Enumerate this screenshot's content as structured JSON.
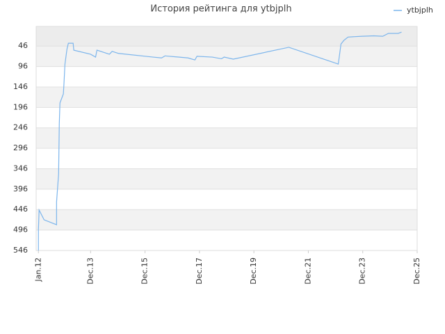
{
  "chart_data": {
    "type": "line",
    "title": "История рейтинга для ytbjplh",
    "x": [
      0,
      0,
      0.3,
      2.5,
      8,
      8,
      8.9,
      9.2,
      9.5,
      11,
      11.3,
      11.7,
      12.6,
      13.2,
      15.3,
      15.6,
      23,
      25.2,
      25.8,
      31.3,
      32.5,
      35.3,
      50.6,
      54.3,
      55.8,
      66,
      69,
      69.9,
      76.7,
      80.7,
      81.9,
      85.9,
      110.4,
      132.2,
      132.8,
      133.4,
      134.7,
      136.5,
      142.6,
      147.9,
      151.8,
      154.3,
      158.6,
      160.1
    ],
    "series": [
      {
        "name": "ytbjplh",
        "color": "#7cb5ec",
        "values": [
          546,
          495,
          447,
          471,
          483,
          427,
          359,
          236,
          185,
          163,
          134,
          90,
          53,
          39,
          39,
          56,
          66,
          73,
          56,
          66,
          59,
          64,
          73,
          75,
          70,
          75,
          80,
          71,
          73,
          77,
          73,
          78,
          49,
          90,
          66,
          41,
          32,
          24,
          22,
          21,
          22,
          15,
          15,
          12
        ]
      }
    ],
    "xlim": [
      -1,
      167
    ],
    "xticks": [
      {
        "value": 0,
        "label": "Jan.12"
      },
      {
        "value": 23,
        "label": "Dec.13"
      },
      {
        "value": 47,
        "label": "Dec.15"
      },
      {
        "value": 71,
        "label": "Dec.17"
      },
      {
        "value": 95,
        "label": "Dec.19"
      },
      {
        "value": 119,
        "label": "Dec.21"
      },
      {
        "value": 143,
        "label": "Dec.23"
      },
      {
        "value": 167,
        "label": "Dec.25"
      }
    ],
    "ylim": [
      546,
      -2
    ],
    "yticks": [
      46,
      96,
      146,
      196,
      246,
      296,
      346,
      396,
      446,
      496,
      546
    ],
    "grid": true,
    "legend": "top-right"
  }
}
